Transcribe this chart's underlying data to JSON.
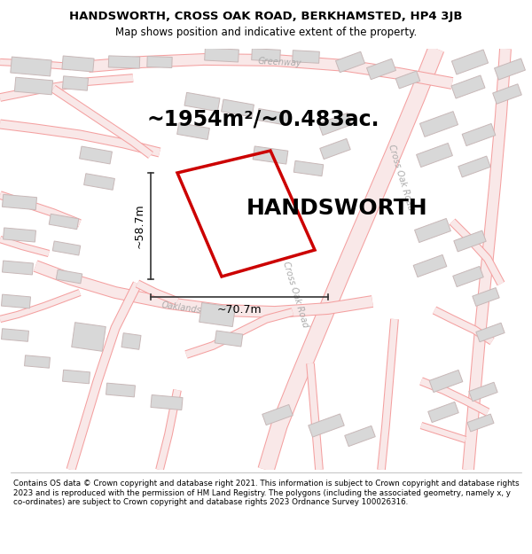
{
  "title_line1": "HANDSWORTH, CROSS OAK ROAD, BERKHAMSTED, HP4 3JB",
  "title_line2": "Map shows position and indicative extent of the property.",
  "property_name": "HANDSWORTH",
  "area_text": "~1954m²/~0.483ac.",
  "width_label": "~70.7m",
  "height_label": "~58.7m",
  "copyright_text": "Contains OS data © Crown copyright and database right 2021. This information is subject to Crown copyright and database rights 2023 and is reproduced with the permission of HM Land Registry. The polygons (including the associated geometry, namely x, y co-ordinates) are subject to Crown copyright and database rights 2023 Ordnance Survey 100026316.",
  "bg_color": "#ffffff",
  "map_bg": "#fafafa",
  "road_line_color": "#f4a0a0",
  "road_fill_color": "#f9e8e8",
  "building_fill": "#d8d8d8",
  "building_edge": "#c8b8b8",
  "property_color": "#cc0000",
  "dim_color": "#333333",
  "road_label_color": "#aaaaaa",
  "title_fontsize": 9.5,
  "subtitle_fontsize": 8.5,
  "area_fontsize": 17,
  "prop_label_fontsize": 18,
  "dim_fontsize": 9,
  "road_label_fontsize": 7
}
